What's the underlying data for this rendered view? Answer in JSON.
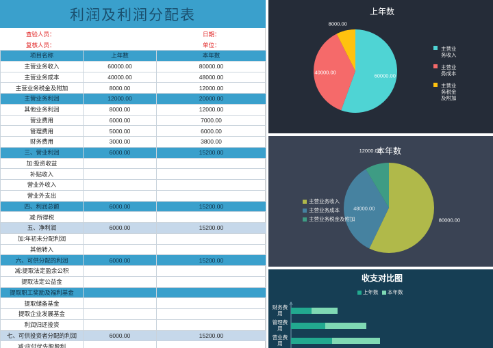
{
  "sheet": {
    "title": "利润及利润分配表",
    "meta": {
      "checker_label": "查验人员：",
      "date_label": "日期：",
      "reviewer_label": "复核人员：",
      "unit_label": "单位："
    },
    "headers": [
      "项目名称",
      "上年数",
      "本年数"
    ],
    "rows": [
      {
        "name": "主营业务收入",
        "last": "60000.00",
        "cur": "80000.00",
        "style": "plain"
      },
      {
        "name": "主营业务成本",
        "last": "40000.00",
        "cur": "48000.00",
        "style": "plain"
      },
      {
        "name": "主营业务税金及附加",
        "last": "8000.00",
        "cur": "12000.00",
        "style": "plain"
      },
      {
        "name": "主营业务利润",
        "last": "12000.00",
        "cur": "20000.00",
        "style": "blue"
      },
      {
        "name": "其他业务利润",
        "last": "8000.00",
        "cur": "12000.00",
        "style": "plain"
      },
      {
        "name": "营业费用",
        "last": "6000.00",
        "cur": "7000.00",
        "style": "plain"
      },
      {
        "name": "管理费用",
        "last": "5000.00",
        "cur": "6000.00",
        "style": "plain"
      },
      {
        "name": "财务费用",
        "last": "3000.00",
        "cur": "3800.00",
        "style": "plain"
      },
      {
        "name": "三、营业利润",
        "last": "6000.00",
        "cur": "15200.00",
        "style": "blue"
      },
      {
        "name": "加:投资收益",
        "last": "",
        "cur": "",
        "style": "plain"
      },
      {
        "name": "补贴收入",
        "last": "",
        "cur": "",
        "style": "plain"
      },
      {
        "name": "营业外收入",
        "last": "",
        "cur": "",
        "style": "plain"
      },
      {
        "name": "营业外支出",
        "last": "",
        "cur": "",
        "style": "plain"
      },
      {
        "name": "四、利润总额",
        "last": "6000.00",
        "cur": "15200.00",
        "style": "blue"
      },
      {
        "name": "减:所得税",
        "last": "",
        "cur": "",
        "style": "plain"
      },
      {
        "name": "五、净利润",
        "last": "6000.00",
        "cur": "15200.00",
        "style": "pale"
      },
      {
        "name": "加:年初未分配利润",
        "last": "",
        "cur": "",
        "style": "plain"
      },
      {
        "name": "其他转入",
        "last": "",
        "cur": "",
        "style": "plain"
      },
      {
        "name": "六、可供分配的利润",
        "last": "6000.00",
        "cur": "15200.00",
        "style": "blue"
      },
      {
        "name": "减:提取法定盈余公积",
        "last": "",
        "cur": "",
        "style": "plain"
      },
      {
        "name": "提取法定公益金",
        "last": "",
        "cur": "",
        "style": "plain"
      },
      {
        "name": "提取职工奖励及福利基金",
        "last": "",
        "cur": "",
        "style": "blue"
      },
      {
        "name": "提取储备基金",
        "last": "",
        "cur": "",
        "style": "plain"
      },
      {
        "name": "提取企业发展基金",
        "last": "",
        "cur": "",
        "style": "plain"
      },
      {
        "name": "利润归还投资",
        "last": "",
        "cur": "",
        "style": "plain"
      },
      {
        "name": "七、可供投资者分配的利润",
        "last": "6000.00",
        "cur": "15200.00",
        "style": "pale"
      },
      {
        "name": "减:应付优先股股利",
        "last": "",
        "cur": "",
        "style": "plain"
      }
    ]
  },
  "chart_data": [
    {
      "type": "pie",
      "title": "上年数",
      "categories": [
        "主营业务收入",
        "主营业务成本",
        "主营业务税金及附加"
      ],
      "legend_labels": [
        [
          "主营业",
          "务收入"
        ],
        [
          "主营业",
          "务成本"
        ],
        [
          "主营业",
          "务税金",
          "及附加"
        ]
      ],
      "values": [
        60000,
        40000,
        8000
      ],
      "data_labels": [
        "60000.00",
        "40000.00",
        "8000.00"
      ],
      "colors": [
        "#4fd4d4",
        "#f56a6a",
        "#ffc20e"
      ],
      "legend": "right"
    },
    {
      "type": "pie",
      "title": "本年数",
      "categories": [
        "主营业务收入",
        "主营业务成本",
        "主营业务税金及附加"
      ],
      "legend_labels": [
        [
          "主营业务收入"
        ],
        [
          "主营业务成本"
        ],
        [
          "主营业务税金及附加"
        ]
      ],
      "values": [
        80000,
        48000,
        12000
      ],
      "data_labels": [
        "80000.00",
        "48000.00",
        "12000.00"
      ],
      "colors": [
        "#b0b94a",
        "#4682a0",
        "#3e9c84"
      ],
      "legend": "left"
    },
    {
      "type": "bar",
      "orientation": "horizontal",
      "stacked": true,
      "title": "收支对比图",
      "categories": [
        "财务费用",
        "管理费用",
        "营业费用"
      ],
      "category_labels": [
        [
          "财务费",
          "用"
        ],
        [
          "管理费",
          "用"
        ],
        [
          "营业费",
          "用"
        ]
      ],
      "series": [
        {
          "name": "上年数",
          "values": [
            3000,
            5000,
            6000
          ],
          "color": "#22a98f"
        },
        {
          "name": "本年数",
          "values": [
            3800,
            6000,
            7000
          ],
          "color": "#7fd9b4"
        }
      ],
      "legend": "top"
    }
  ]
}
